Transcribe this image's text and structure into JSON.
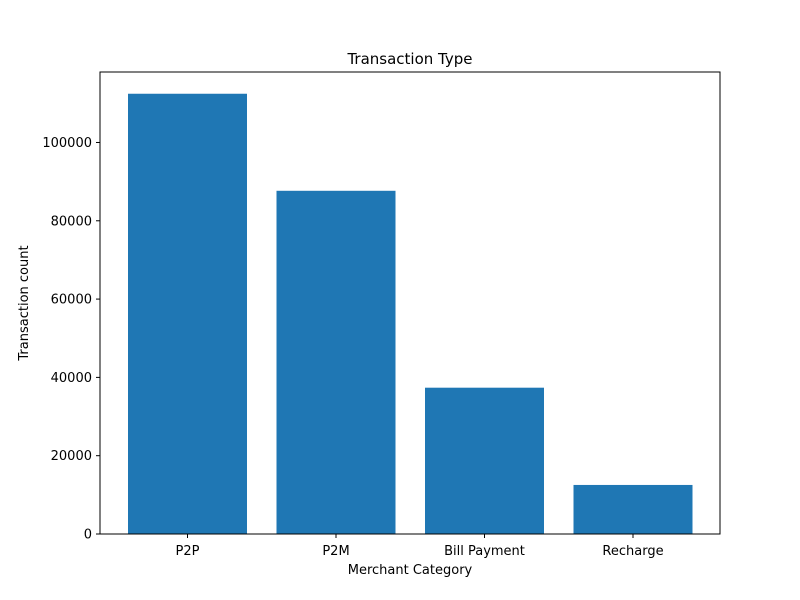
{
  "chart_data": {
    "type": "bar",
    "title": "Transaction Type",
    "xlabel": "Merchant Category",
    "ylabel": "Transaction count",
    "categories": [
      "P2P",
      "P2M",
      "Bill Payment",
      "Recharge"
    ],
    "values": [
      112445,
      87660,
      37368,
      12527
    ],
    "ylim": [
      0,
      118000
    ],
    "yticks": [
      0,
      20000,
      40000,
      60000,
      80000,
      100000
    ],
    "ytick_labels": [
      "0",
      "20000",
      "40000",
      "60000",
      "80000",
      "100000"
    ],
    "grid": false,
    "legend": "none",
    "colors": {
      "bar": "#1f77b4",
      "axis": "#000000",
      "background": "#ffffff"
    }
  }
}
